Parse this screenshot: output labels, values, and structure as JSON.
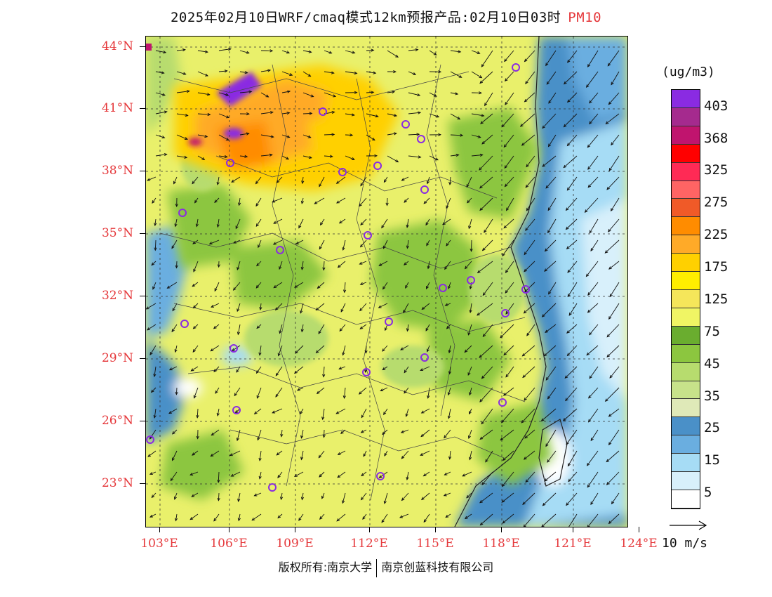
{
  "title": {
    "main": "2025年02月10日WRF/cmaq模式12km预报产品:02月10日03时",
    "variable": "PM10"
  },
  "lat_labels": [
    "44°N",
    "41°N",
    "38°N",
    "35°N",
    "32°N",
    "29°N",
    "26°N",
    "23°N"
  ],
  "lon_labels": [
    "103°E",
    "106°E",
    "109°E",
    "112°E",
    "115°E",
    "118°E",
    "121°E",
    "124°E"
  ],
  "legend": {
    "unit": "(ug/m3)",
    "labels": [
      "403",
      "368",
      "325",
      "275",
      "225",
      "175",
      "125",
      "75",
      "45",
      "35",
      "25",
      "15",
      "5"
    ],
    "colors": [
      "#8a2be2",
      "#a52a8e",
      "#c0146e",
      "#ff0000",
      "#ff2a55",
      "#ff6464",
      "#f05a28",
      "#ff8c00",
      "#ffaa28",
      "#ffd000",
      "#ffee00",
      "#f5e65a",
      "#f0f564",
      "#6aad2f",
      "#8cc63f",
      "#b7dc6e",
      "#c7e28a",
      "#dfe9b8",
      "#4a90c8",
      "#6aaee0",
      "#a6dcf5",
      "#d8f0fb",
      "#ffffff"
    ]
  },
  "wind_reference": "10 m/s",
  "copyright": {
    "left": "版权所有:南京大学",
    "right": "南京创蓝科技有限公司"
  }
}
